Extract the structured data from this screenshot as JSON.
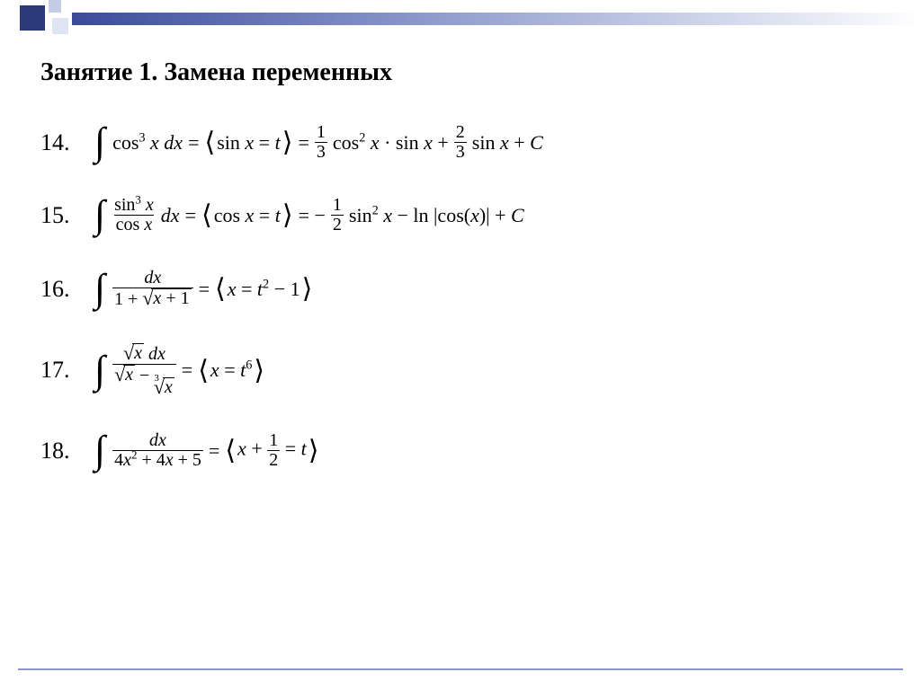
{
  "decor": {
    "square_dark_color": "#2a3a7a",
    "square_light_color": "#c5cde6",
    "gradient_from": "#3a4a9a",
    "gradient_to": "#ffffff",
    "footer_color": "#8a96c8"
  },
  "title": "Занятие 1. Замена переменных",
  "items": [
    {
      "num": "14.",
      "integrand": "cos³ x dx",
      "subst": "sin x = t",
      "result_prefix": "",
      "result": "(1/3) cos² x · sin x + (2/3) sin x + C"
    },
    {
      "num": "15.",
      "integrand": "(sin³ x / cos x) dx",
      "subst": "cos x = t",
      "result_prefix": "−",
      "result": "(1/2) sin² x − ln |cos(x)| + C"
    },
    {
      "num": "16.",
      "integrand": "dx / (1 + √(x+1))",
      "subst": "x = t² − 1",
      "result": ""
    },
    {
      "num": "17.",
      "integrand": "(√x dx) / (√x − ∛x)",
      "subst": "x = t⁶",
      "result": ""
    },
    {
      "num": "18.",
      "integrand": "dx / (4x² + 4x + 5)",
      "subst": "x + 1/2 = t",
      "result": ""
    }
  ]
}
